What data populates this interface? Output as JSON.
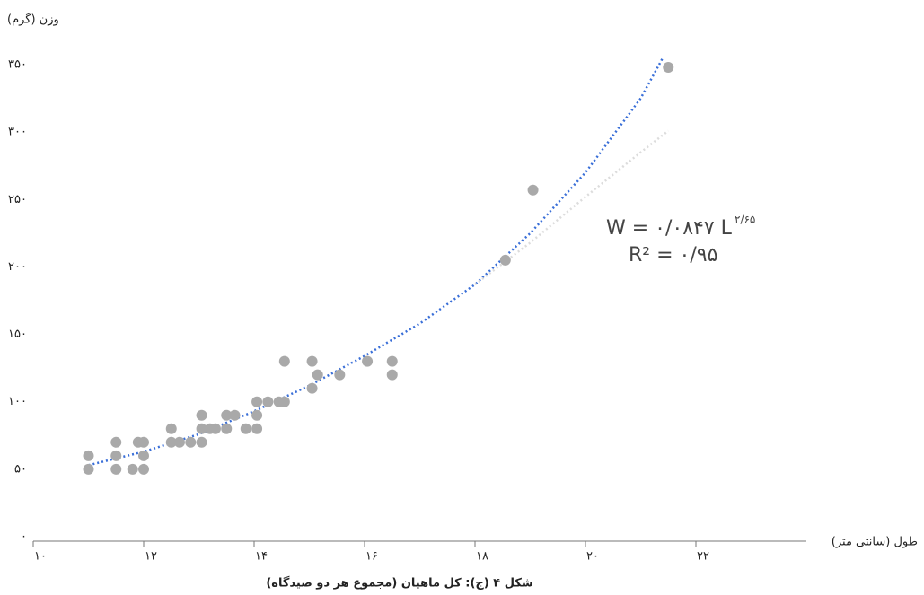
{
  "chart_data": {
    "type": "scatter",
    "y_label": "وزن (گرم)",
    "x_label": "طول (سانتی متر)",
    "caption": "شکل ۴ (ج): کل ماهیان (مجموع هر دو صیدگاه)",
    "equation": {
      "main": "W = ۰/۰۸۴۷ L",
      "exponent": "۲/۶۵",
      "r2": "R² = ۰/۹۵"
    },
    "xlim": [
      10,
      24
    ],
    "ylim": [
      0,
      360
    ],
    "xticks": [
      {
        "value": 10,
        "label": "۱۰"
      },
      {
        "value": 12,
        "label": "۱۲"
      },
      {
        "value": 14,
        "label": "۱۴"
      },
      {
        "value": 16,
        "label": "۱۶"
      },
      {
        "value": 18,
        "label": "۱۸"
      },
      {
        "value": 20,
        "label": "۲۰"
      },
      {
        "value": 22,
        "label": "۲۲"
      }
    ],
    "yticks": [
      {
        "value": 0,
        "label": "۰"
      },
      {
        "value": 50,
        "label": "۵۰"
      },
      {
        "value": 100,
        "label": "۱۰۰"
      },
      {
        "value": 150,
        "label": "۱۵۰"
      },
      {
        "value": 200,
        "label": "۲۰۰"
      },
      {
        "value": 250,
        "label": "۲۵۰"
      },
      {
        "value": 300,
        "label": "۳۰۰"
      },
      {
        "value": 350,
        "label": "۳۵۰"
      }
    ],
    "color": "#a9a9a9",
    "x": [
      11,
      11,
      11.5,
      11.5,
      11.5,
      11.8,
      11.9,
      12,
      12,
      12,
      12.5,
      12.5,
      12.65,
      12.85,
      13.05,
      13.05,
      13.05,
      13.2,
      13.3,
      13.5,
      13.5,
      13.65,
      13.85,
      14.05,
      14.05,
      14.05,
      14.25,
      14.45,
      14.55,
      14.55,
      15.05,
      15.05,
      15.15,
      15.55,
      16.05,
      16.5,
      16.5,
      18.55,
      19.05,
      21.5
    ],
    "values": [
      60,
      50,
      70,
      60,
      50,
      50,
      70,
      70,
      60,
      50,
      80,
      70,
      70,
      70,
      70,
      80,
      90,
      80,
      80,
      90,
      80,
      90,
      80,
      80,
      90,
      100,
      100,
      100,
      100,
      130,
      130,
      110,
      120,
      120,
      130,
      130,
      120,
      205,
      257,
      348
    ],
    "trendlines": [
      {
        "color": "#3a6fd8",
        "x": [
          11,
          12,
          13,
          14,
          15,
          16,
          17,
          18,
          19,
          20,
          21,
          21.4
        ],
        "values": [
          53,
          63,
          76,
          93,
          112,
          134,
          158,
          187,
          225,
          270,
          325,
          355
        ]
      },
      {
        "color": "#dcdcdc",
        "x": [
          18,
          19,
          20,
          21,
          21.5
        ],
        "values": [
          187,
          218,
          252,
          285,
          301
        ]
      }
    ]
  }
}
